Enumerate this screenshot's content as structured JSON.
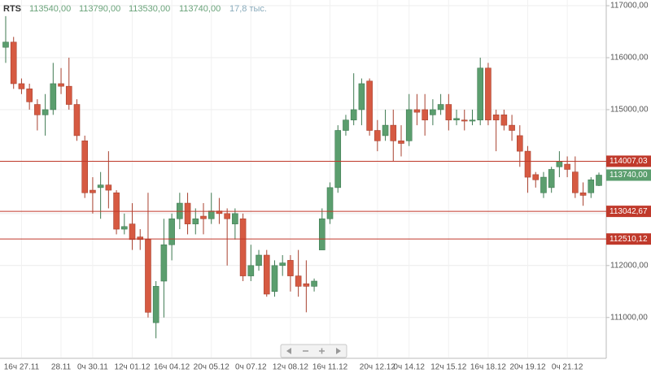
{
  "chart_data": {
    "type": "candlestick",
    "title": "RTS",
    "header": [
      {
        "value": 113540,
        "label": "113540,00"
      },
      {
        "value": 113790,
        "label": "113790,00"
      },
      {
        "value": 113530,
        "label": "113530,00"
      },
      {
        "value": 113740,
        "label": "113740,00"
      }
    ],
    "volume_label": "17,8 тыс.",
    "categories": [
      null,
      null,
      "16ч 27.11",
      null,
      null,
      null,
      null,
      "28.11",
      null,
      null,
      null,
      "0ч 30.11",
      null,
      null,
      null,
      null,
      "12ч 01.12",
      null,
      null,
      null,
      null,
      "16ч 04.12",
      null,
      null,
      null,
      null,
      "20ч 05.12",
      null,
      null,
      null,
      null,
      "0ч 07.12",
      null,
      null,
      null,
      null,
      "12ч 08.12",
      null,
      null,
      null,
      null,
      "16ч 11.12",
      null,
      null,
      null,
      null,
      null,
      "20ч 12.12",
      null,
      null,
      null,
      "0ч 14.12",
      null,
      null,
      null,
      null,
      "12ч 15.12",
      null,
      null,
      null,
      null,
      "16ч 18.12",
      null,
      null,
      null,
      null,
      "20ч 19.12",
      null,
      null,
      null,
      null,
      "0ч 21.12",
      null,
      null,
      null,
      null
    ],
    "open": [
      116200,
      116300,
      115500,
      115400,
      115100,
      114900,
      115000,
      115500,
      115450,
      115100,
      114400,
      113450,
      113500,
      113550,
      113400,
      112700,
      112800,
      112550,
      112500,
      110900,
      111700,
      112400,
      112900,
      113200,
      112800,
      112950,
      112900,
      113050,
      113000,
      112800,
      112900,
      111800,
      112000,
      112200,
      111500,
      112000,
      112100,
      111800,
      111650,
      111600,
      112300,
      112900,
      113500,
      114600,
      114800,
      115000,
      115550,
      114600,
      114500,
      114700,
      114400,
      114400,
      115000,
      115000,
      114900,
      115000,
      115100,
      114800,
      114800,
      114780,
      114800,
      115800,
      114900,
      114900,
      114700,
      114500,
      114200,
      113750,
      113400,
      113500,
      113900,
      113950,
      113800,
      113400,
      113400,
      113540
    ],
    "high": [
      116800,
      116400,
      115600,
      115500,
      115200,
      115300,
      115900,
      115800,
      116000,
      115200,
      114500,
      113700,
      113800,
      114200,
      113450,
      113000,
      113200,
      112700,
      113400,
      111700,
      112900,
      113000,
      113400,
      113400,
      113100,
      113200,
      113400,
      113300,
      113100,
      113100,
      113000,
      112400,
      112300,
      112300,
      112100,
      112200,
      112200,
      112300,
      112100,
      111750,
      113100,
      113600,
      114700,
      114900,
      115700,
      115600,
      115600,
      114800,
      115000,
      115000,
      114700,
      115300,
      115300,
      115300,
      115200,
      115300,
      115300,
      115000,
      115000,
      115000,
      116000,
      115900,
      115000,
      115000,
      114900,
      114700,
      114300,
      113800,
      113800,
      113900,
      114200,
      114100,
      114100,
      113600,
      113700,
      113790
    ],
    "low": [
      115900,
      115400,
      115300,
      115000,
      114600,
      114500,
      114900,
      115300,
      115000,
      114400,
      113300,
      113000,
      112900,
      113100,
      112600,
      112600,
      112300,
      112300,
      111000,
      110600,
      111000,
      112100,
      112700,
      112600,
      112600,
      112600,
      112800,
      112800,
      112000,
      112500,
      111700,
      111700,
      111900,
      111400,
      111400,
      111800,
      111500,
      111400,
      111100,
      111500,
      112300,
      112800,
      113400,
      114500,
      114700,
      114700,
      114500,
      114200,
      114400,
      114000,
      114100,
      114300,
      114700,
      114500,
      114700,
      114900,
      114600,
      114700,
      114600,
      114700,
      114700,
      114700,
      114200,
      114600,
      114400,
      113900,
      113400,
      113500,
      113300,
      113400,
      113700,
      113700,
      113300,
      113150,
      113300,
      113530
    ],
    "close": [
      116300,
      115500,
      115400,
      115150,
      114900,
      115000,
      115500,
      115450,
      115100,
      114500,
      113400,
      113400,
      113550,
      113450,
      112700,
      112750,
      112500,
      112500,
      111100,
      111600,
      112400,
      112900,
      113200,
      112800,
      112900,
      112900,
      113050,
      113000,
      112900,
      113000,
      111800,
      112000,
      112200,
      111450,
      112000,
      112050,
      111800,
      111600,
      111600,
      111700,
      112900,
      113500,
      114600,
      114800,
      115000,
      115500,
      114600,
      114400,
      114700,
      114400,
      114350,
      115000,
      114950,
      114800,
      115000,
      115100,
      114800,
      114830,
      114780,
      114800,
      115800,
      114800,
      114800,
      114700,
      114600,
      114200,
      113700,
      113650,
      113700,
      113850,
      114000,
      113850,
      113400,
      113350,
      113650,
      113740
    ],
    "up_color": "#5b9e6e",
    "down_color": "#d65a42",
    "ylim": [
      110230,
      117110
    ],
    "yticks": [
      {
        "value": 111000,
        "label": "111000,00"
      },
      {
        "value": 112000,
        "label": "112000,00"
      },
      {
        "value": 113000,
        "label": "113000,00"
      },
      {
        "value": 114000,
        "label": "114000,00"
      },
      {
        "value": 115000,
        "label": "115000,00"
      },
      {
        "value": 116000,
        "label": "116000,00"
      },
      {
        "value": 117000,
        "label": "117000,00"
      }
    ],
    "levels": [
      {
        "value": 114007.03,
        "label": "114007,03"
      },
      {
        "value": 113042.67,
        "label": "113042,67"
      },
      {
        "value": 112510.12,
        "label": "112510,12"
      }
    ],
    "level_color": "#c0392b",
    "price_label": {
      "value": 113740,
      "label": "113740,00"
    },
    "grid": true
  }
}
